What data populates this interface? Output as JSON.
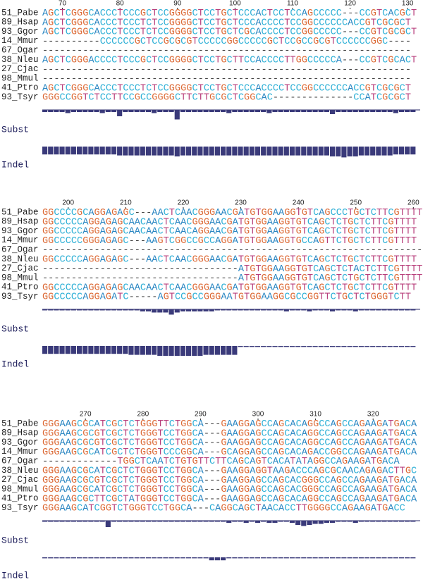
{
  "blocks": [
    {
      "start": 67,
      "ticks": [
        70,
        80,
        90,
        100,
        110,
        120,
        130
      ],
      "rows": [
        {
          "name": "51_Pabe",
          "seq": "AGCTCGGGCACCCTCCCGCTCCGGGGCTCCTGCTCCCACTCCTCCAGCCCCC---CCGTCACGCT"
        },
        {
          "name": "89_Hsap",
          "seq": "AGCTCGGGCACCCTCCCTCTCCGGGGCTCCTGCTCCCACCCCTCCGGCCCCCCACCGTCGCGCT"
        },
        {
          "name": "93_Ggor",
          "seq": "AGCTCGGGCACCCTCCCTCTCCGGGGCTCCTGCTCGCACCCCTCCGGCCCCC---CCGTCGCGCT"
        },
        {
          "name": "14_Mmur",
          "seq": "----------CCCCCCGCTCCGCGCGTCCCCCGGCCCCCGCTCCGCCGCGTCCCCCCGGC----"
        },
        {
          "name": "67_Ogar",
          "seq": "----------------------------------------------------------------"
        },
        {
          "name": "38_Nleu",
          "seq": "AGCTCGGGACCCCTCCCGCTCCGGGGCTCCTGCTTCCACCCCTTGGCCCCCA---CCGTCGCACT"
        },
        {
          "name": "27_Cjac",
          "seq": "----------------------------------------------------------------"
        },
        {
          "name": "98_Mmul",
          "seq": "----------------------------------------------------------------"
        },
        {
          "name": "41_Ptro",
          "seq": "AGCTCGGGCACCCTCCCTCTCCGGGGCTCCTGCTCCCACCCCTCCGGCCCCCCACCGTCGCGCT"
        },
        {
          "name": "93_Tsyr",
          "seq": "GGGCCGGTCTCCTTCCGCCGGGGCTTCTTGCGCTCGGCAC--------------CCATCGCGCT"
        }
      ],
      "subst_label": "Subst",
      "indel_label": "Indel",
      "subst": [
        2,
        2,
        2,
        2,
        3,
        2,
        2,
        2,
        2,
        2,
        3,
        2,
        2,
        6,
        2,
        2,
        2,
        2,
        2,
        3,
        2,
        2,
        2,
        9,
        2,
        2,
        2,
        2,
        2,
        2,
        2,
        2,
        3,
        2,
        2,
        2,
        2,
        2,
        2,
        3,
        2,
        2,
        2,
        2,
        2,
        2,
        2,
        2,
        2,
        2,
        4,
        2,
        2,
        2,
        2,
        2,
        2,
        2,
        2,
        2,
        2,
        3,
        2,
        2,
        2
      ],
      "indel": [
        8,
        8,
        8,
        8,
        8,
        8,
        8,
        8,
        8,
        8,
        8,
        8,
        8,
        9,
        9,
        9,
        9,
        9,
        9,
        9,
        9,
        9,
        9,
        10,
        9,
        9,
        9,
        9,
        9,
        9,
        9,
        9,
        9,
        9,
        9,
        9,
        9,
        9,
        9,
        9,
        9,
        9,
        9,
        9,
        9,
        9,
        9,
        9,
        9,
        9,
        10,
        10,
        11,
        10,
        10,
        9,
        9,
        9,
        9,
        9,
        9,
        8,
        8,
        8,
        8
      ]
    },
    {
      "start": 196,
      "ticks": [
        200,
        210,
        220,
        230,
        240,
        250,
        260
      ],
      "rows": [
        {
          "name": "51_Pabe",
          "seq": "GGCCCCGCAGGAGAGC---AACTCAACGGGAACGATGTGGAAGGTGTCAGCCCTGCTCTTCGTTTT"
        },
        {
          "name": "89_Hsap",
          "seq": "GGCCCCCAGGAGAGCAACAACTCAACGGGAACGATGTGGAAGGTGTCAGCTCTGCTCTTCGTTTT"
        },
        {
          "name": "93_Ggor",
          "seq": "GGCCCCCAGGAGAGCAACAACTCAACAGGAACGATGTGGAAGGTGTCAGCTCTGCTCTTCGTTTT"
        },
        {
          "name": "14_Mmur",
          "seq": "GGCCCCCGGGAGAGC---AAGTCGGCCGCCAGGATGTGGAAGGTGCCAGTTCTGCTCTTCGTTTT"
        },
        {
          "name": "67_Ogar",
          "seq": "------------------------------------------------------------------"
        },
        {
          "name": "38_Nleu",
          "seq": "GGCCCCCAGGAGAGC---AACTCAACGGGAACGATGTGGAAGGTGTCAGCTCTGCTCTTCGTTTT"
        },
        {
          "name": "27_Cjac",
          "seq": "----------------------------------ATGTGGAAGGTGTCAGCTCTACTCTTCGTTTT"
        },
        {
          "name": "98_Mmul",
          "seq": "----------------------------------ATGTGGAAGGTGTCAGCTCTGCTCTTCGTTTT"
        },
        {
          "name": "41_Ptro",
          "seq": "GGCCCCCAGGAGAGCAACAACTCAACGGGAACGATGTGGAAGGTGTCAGCTCTGCTCTTCGTTTT"
        },
        {
          "name": "93_Tsyr",
          "seq": "GGCCCCCAGGAGATC-----AGTCCGCCGGGAATGTGGAAGGCGCCGGTTCTGCTCTGGGTCTT"
        }
      ],
      "subst_label": "Subst",
      "indel_label": "Indel",
      "subst": [
        1,
        1,
        1,
        1,
        1,
        1,
        1,
        1,
        1,
        1,
        1,
        1,
        1,
        1,
        1,
        1,
        1,
        2,
        2,
        3,
        3,
        3,
        5,
        3,
        2,
        2,
        2,
        2,
        2,
        2,
        1,
        1,
        1,
        1,
        1,
        1,
        1,
        1,
        1,
        1,
        1,
        1,
        2,
        1,
        1,
        1,
        2,
        1,
        1,
        1,
        2,
        1,
        1,
        1,
        2,
        1,
        1,
        1,
        1,
        1,
        1,
        1,
        1,
        1,
        1
      ],
      "indel": [
        8,
        8,
        8,
        8,
        8,
        8,
        8,
        8,
        8,
        8,
        8,
        8,
        8,
        8,
        8,
        9,
        9,
        9,
        9,
        9,
        10,
        10,
        10,
        10,
        10,
        10,
        10,
        10,
        9,
        9,
        9,
        9,
        9,
        9,
        1,
        1,
        1,
        1,
        1,
        1,
        1,
        1,
        1,
        1,
        1,
        1,
        1,
        1,
        1,
        1,
        1,
        1,
        1,
        1,
        1,
        1,
        1,
        1,
        1,
        1,
        1,
        1,
        1,
        1,
        1
      ]
    },
    {
      "start": 263,
      "ticks": [
        270,
        280,
        290,
        300,
        310,
        320
      ],
      "rows": [
        {
          "name": "51_Pabe",
          "seq": "GGGAAGCGCATCGCTCTGGGTTCTGGCA---GAAGGAGCCAGCACAGGCCAGCCAGAAGATGACA"
        },
        {
          "name": "89_Hsap",
          "seq": "GGGAAGCGCGTCGCTCTGGGTCCTGGCA---GAAGGAGCCAGCACAGGCCAGCCAGAAGATGACA"
        },
        {
          "name": "93_Ggor",
          "seq": "GGGAAGCGCGTCGCTCTGGGTCCTGGCA---GAAGGAGCCAGCACAGGCCAGCCAGAAGATGACA"
        },
        {
          "name": "14_Mmur",
          "seq": "GGGAAGCGCATCGCTCTGGGTCCCGGCA---GCAGGAGCCAGCACAGACCGGCCAGAAGATGACA"
        },
        {
          "name": "67_Ogar",
          "seq": "-------------TGGCTCAATCTGTGTTCTTCAGCAGTCACATATAGGCCAGAAGATGACA"
        },
        {
          "name": "38_Nleu",
          "seq": "GGGAAGCGCATCGCTCTGGGTCCTGGCA---GAAGGAGGTAAGACCCAGCGCAACAGAGACTTGC"
        },
        {
          "name": "27_Cjac",
          "seq": "GGGAAGCGCGTCGCTCTGGGTCCTGGCA---GAAGGAGCCAGCACGGGCCAGCCAGAAGATGACA"
        },
        {
          "name": "98_Mmul",
          "seq": "GGGAAGCGCATCGCTCTGGGTCCTGGCA---GAAGGAGCCAGCACGGGCCAGCCAGAAGATGACA"
        },
        {
          "name": "41_Ptro",
          "seq": "GGGAAGCGCTTCGCTATGGGTCCTGGCA---GAAGGAGCCAGCACAGGCCAGCCAGAAGATGACA"
        },
        {
          "name": "93_Tsyr",
          "seq": "GGGAAGCATCGGTCTGGGTCCTGGCA---CAGGCAGCTAACACCTTGGGGCCAGAAGATGACC"
        }
      ],
      "subst_label": "Subst",
      "indel_label": "Indel",
      "subst": [
        1,
        1,
        1,
        1,
        1,
        1,
        1,
        1,
        1,
        1,
        1,
        6,
        1,
        1,
        1,
        1,
        1,
        1,
        1,
        1,
        1,
        1,
        1,
        1,
        1,
        1,
        1,
        1,
        1,
        1,
        1,
        1,
        2,
        1,
        1,
        2,
        1,
        2,
        1,
        2,
        2,
        1,
        1,
        2,
        4,
        5,
        4,
        3,
        3,
        2,
        2,
        1,
        1,
        1,
        2,
        1,
        1,
        1,
        1,
        1,
        1,
        1,
        1,
        1,
        1
      ],
      "indel": [
        1,
        1,
        1,
        1,
        1,
        1,
        1,
        1,
        1,
        1,
        1,
        1,
        1,
        1,
        1,
        1,
        1,
        1,
        1,
        1,
        1,
        1,
        1,
        1,
        1,
        1,
        1,
        1,
        1,
        3,
        3,
        3,
        1,
        1,
        1,
        1,
        1,
        1,
        1,
        1,
        1,
        1,
        1,
        1,
        1,
        1,
        1,
        1,
        1,
        1,
        1,
        1,
        1,
        1,
        1,
        1,
        1,
        1,
        1,
        1,
        1,
        1,
        1,
        1,
        1
      ]
    }
  ],
  "base_colors": {
    "A": "#2a86c2",
    "C": "#2fb0d6",
    "G": "#dc6a36",
    "T": "#b8407c",
    "-": "#444444"
  }
}
